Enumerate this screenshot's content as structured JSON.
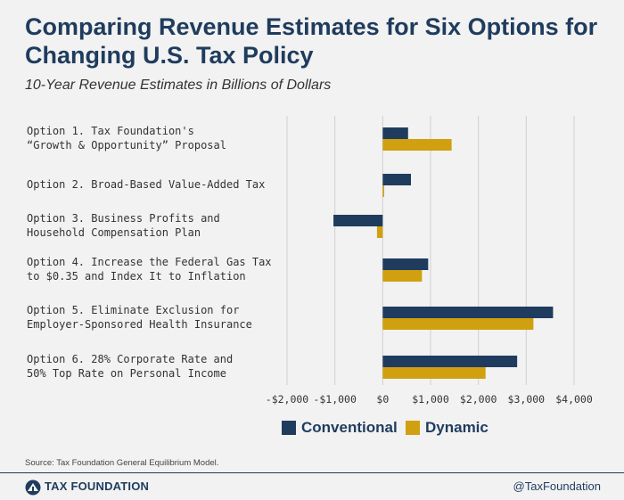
{
  "title": "Comparing Revenue Estimates for Six Options for Changing U.S. Tax Policy",
  "subtitle": "10-Year Revenue Estimates in Billions of Dollars",
  "colors": {
    "conventional": "#1f3c5e",
    "dynamic": "#d0a010",
    "grid": "#d0d0d0"
  },
  "chart_data": {
    "type": "bar",
    "orientation": "horizontal",
    "title": "Comparing Revenue Estimates for Six Options for Changing U.S. Tax Policy",
    "subtitle": "10-Year Revenue Estimates in Billions of Dollars",
    "categories": [
      [
        "Option 1. Tax Foundation's",
        "“Growth & Opportunity” Proposal"
      ],
      [
        "Option 2. Broad-Based Value-Added Tax"
      ],
      [
        "Option 3. Business Profits and",
        "Household Compensation Plan"
      ],
      [
        "Option 4. Increase the Federal Gas Tax",
        "to $0.35 and Index It to Inflation"
      ],
      [
        "Option 5. Eliminate Exclusion for",
        "Employer-Sponsored Health Insurance"
      ],
      [
        "Option 6. 28% Corporate Rate and",
        "50% Top Rate on Personal Income"
      ]
    ],
    "series": [
      {
        "name": "Conventional",
        "values": [
          530,
          590,
          -1030,
          950,
          3560,
          2810
        ]
      },
      {
        "name": "Dynamic",
        "values": [
          1440,
          30,
          -120,
          820,
          3150,
          2150
        ]
      }
    ],
    "xlim": [
      -2000,
      4000
    ],
    "xticks": [
      -2000,
      -1000,
      0,
      1000,
      2000,
      3000,
      4000
    ],
    "xtick_labels": [
      "-$2,000",
      "-$1,000",
      "$0",
      "$1,000",
      "$2,000",
      "$3,000",
      "$4,000"
    ],
    "grid": true,
    "legend_position": "bottom-center"
  },
  "legend": {
    "conventional": "Conventional",
    "dynamic": "Dynamic"
  },
  "source": "Source: Tax Foundation General Equilibrium Model.",
  "footer": {
    "brand": "TAX FOUNDATION",
    "handle": "@TaxFoundation"
  }
}
